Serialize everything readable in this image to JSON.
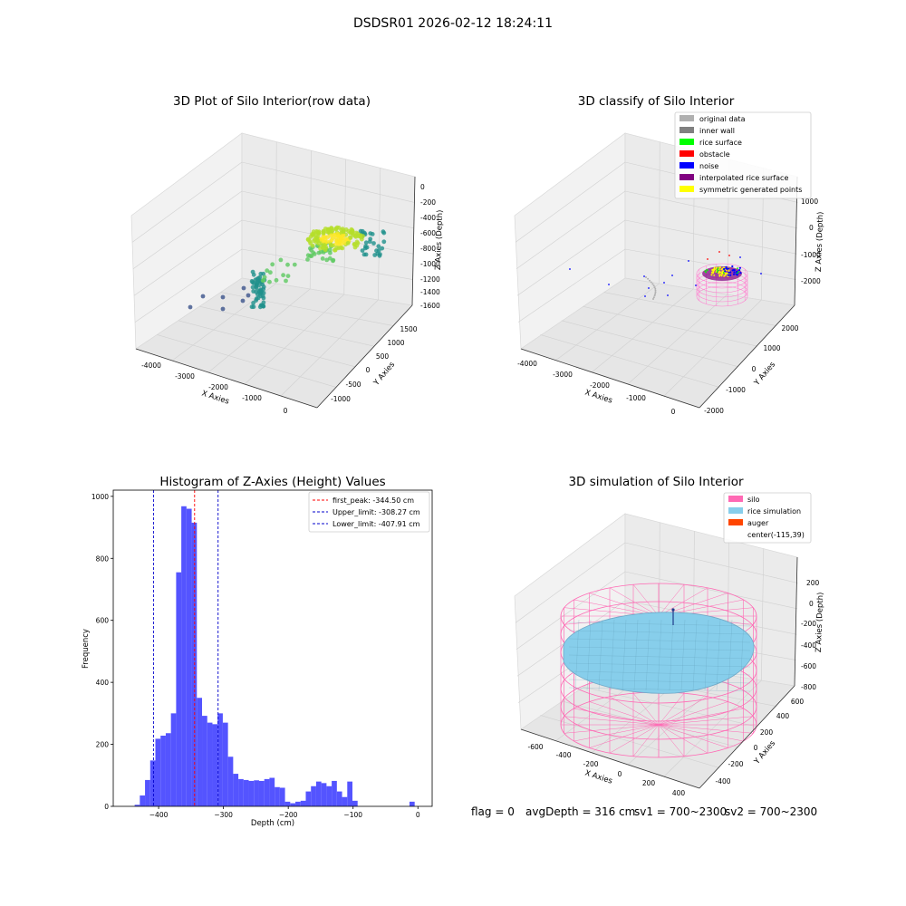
{
  "suptitle": "DSDSR01 2026-02-12 18:24:11",
  "status": {
    "flag": "flag = 0",
    "avg_depth": "avgDepth = 316 cm",
    "sv1": "sv1 = 700~2300",
    "sv2": "sv2 = 700~2300"
  },
  "colors": {
    "histogram_bars": "#4b4bff",
    "first_peak_line": "#ff0000",
    "limit_lines": "#0000cc",
    "original_data": "#b0b0b0",
    "inner_wall": "#808080",
    "rice_surface": "#00ff00",
    "obstacle": "#ff0000",
    "noise": "#0000ff",
    "interpolated_rice_surface": "#800080",
    "symmetric_generated_points": "#ffff00",
    "silo": "#ff69b4",
    "rice_simulation": "#87ceeb",
    "auger": "#ff4500"
  },
  "chart_data": [
    {
      "type": "scatter",
      "projection": "3d",
      "title": "3D Plot of Silo Interior(row data)",
      "xlabel": "X Axies",
      "ylabel": "Y Axies",
      "zlabel": "Z Axies (Depth)",
      "xticks": [
        "-4000",
        "-3000",
        "-2000",
        "-1000",
        "0"
      ],
      "yticks": [
        "-1000",
        "-500",
        "0",
        "500",
        "1000",
        "1500"
      ],
      "zticks": [
        "-1600",
        "-1400",
        "-1200",
        "-1000",
        "-800",
        "-600",
        "-400",
        "-200",
        "0"
      ],
      "colormap": "viridis",
      "grid": true
    },
    {
      "type": "scatter",
      "projection": "3d",
      "title": "3D classify of Silo Interior",
      "xlabel": "X Axies",
      "ylabel": "Y Axies",
      "zlabel": "Z Axies (Depth)",
      "xticks": [
        "-4000",
        "-3000",
        "-2000",
        "-1000",
        "0"
      ],
      "yticks": [
        "-2000",
        "-1000",
        "0",
        "1000",
        "2000"
      ],
      "zticks": [
        "-2000",
        "-1000",
        "0",
        "1000"
      ],
      "legend": [
        "original data",
        "inner wall",
        "rice surface",
        "obstacle",
        "noise",
        "interpolated rice surface",
        "symmetric generated points"
      ],
      "legend_position": "top-right",
      "grid": true
    },
    {
      "type": "bar",
      "title": "Histogram of Z-Axies (Height) Values",
      "xlabel": "Depth (cm)",
      "ylabel": "Frequency",
      "xlim": [
        -470,
        22
      ],
      "ylim": [
        0,
        1020
      ],
      "xticks": [
        -400,
        -300,
        -200,
        -100,
        0
      ],
      "yticks": [
        0,
        200,
        400,
        600,
        800,
        1000
      ],
      "bin_width": 8,
      "bins": [
        {
          "x0": -437,
          "count": 5
        },
        {
          "x0": -429,
          "count": 35
        },
        {
          "x0": -421,
          "count": 85
        },
        {
          "x0": -413,
          "count": 148
        },
        {
          "x0": -405,
          "count": 218
        },
        {
          "x0": -397,
          "count": 228
        },
        {
          "x0": -389,
          "count": 236
        },
        {
          "x0": -381,
          "count": 300
        },
        {
          "x0": -373,
          "count": 755
        },
        {
          "x0": -365,
          "count": 968
        },
        {
          "x0": -357,
          "count": 960
        },
        {
          "x0": -349,
          "count": 915
        },
        {
          "x0": -341,
          "count": 350
        },
        {
          "x0": -333,
          "count": 292
        },
        {
          "x0": -325,
          "count": 270
        },
        {
          "x0": -317,
          "count": 265
        },
        {
          "x0": -309,
          "count": 300
        },
        {
          "x0": -301,
          "count": 270
        },
        {
          "x0": -293,
          "count": 160
        },
        {
          "x0": -285,
          "count": 105
        },
        {
          "x0": -277,
          "count": 88
        },
        {
          "x0": -269,
          "count": 85
        },
        {
          "x0": -261,
          "count": 82
        },
        {
          "x0": -253,
          "count": 84
        },
        {
          "x0": -245,
          "count": 82
        },
        {
          "x0": -237,
          "count": 88
        },
        {
          "x0": -229,
          "count": 92
        },
        {
          "x0": -221,
          "count": 62
        },
        {
          "x0": -213,
          "count": 60
        },
        {
          "x0": -205,
          "count": 15
        },
        {
          "x0": -197,
          "count": 10
        },
        {
          "x0": -189,
          "count": 15
        },
        {
          "x0": -181,
          "count": 18
        },
        {
          "x0": -173,
          "count": 48
        },
        {
          "x0": -165,
          "count": 65
        },
        {
          "x0": -157,
          "count": 80
        },
        {
          "x0": -149,
          "count": 75
        },
        {
          "x0": -141,
          "count": 65
        },
        {
          "x0": -133,
          "count": 82
        },
        {
          "x0": -125,
          "count": 48
        },
        {
          "x0": -117,
          "count": 30
        },
        {
          "x0": -109,
          "count": 80
        },
        {
          "x0": -101,
          "count": 18
        },
        {
          "x0": -13,
          "count": 15
        }
      ],
      "vlines": [
        {
          "label": "first_peak: -344.50 cm",
          "x": -344.5,
          "color": "#ff0000"
        },
        {
          "label": "Upper_limit: -308.27 cm",
          "x": -308.27,
          "color": "#0000cc"
        },
        {
          "label": "Lower_limit: -407.91 cm",
          "x": -407.91,
          "color": "#0000cc"
        }
      ],
      "legend_position": "top-right",
      "grid": false
    },
    {
      "type": "surface",
      "projection": "3d",
      "title": "3D simulation of Silo Interior",
      "xlabel": "X Axies",
      "ylabel": "Y Axies",
      "zlabel": "Z Axies (Depth)",
      "xticks": [
        "-600",
        "-400",
        "-200",
        "0",
        "200",
        "400"
      ],
      "yticks": [
        "-400",
        "-200",
        "0",
        "200",
        "400",
        "600"
      ],
      "zticks": [
        "-800",
        "-600",
        "-400",
        "-200",
        "0",
        "200"
      ],
      "legend": [
        "silo",
        "rice simulation",
        "auger",
        "center(-115,39)"
      ],
      "legend_position": "top-right",
      "grid": true
    }
  ]
}
